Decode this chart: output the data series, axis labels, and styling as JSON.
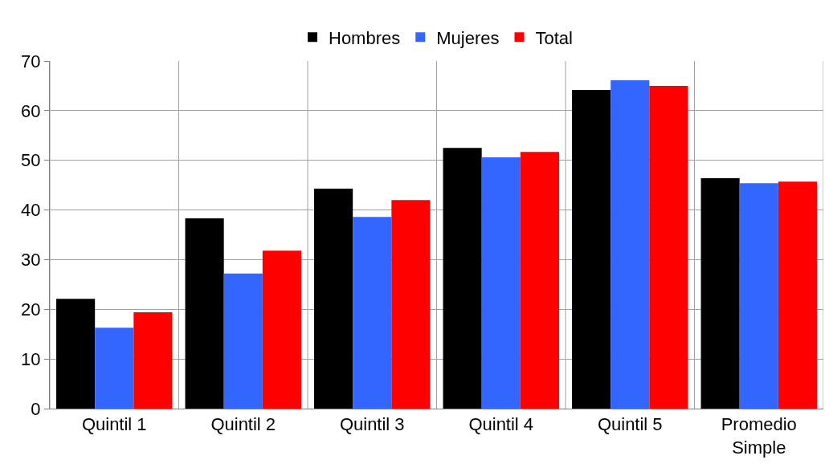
{
  "chart_data": {
    "type": "bar",
    "categories": [
      "Quintil 1",
      "Quintil 2",
      "Quintil 3",
      "Quintil 4",
      "Quintil 5",
      "Promedio Simple"
    ],
    "series": [
      {
        "name": "Hombres",
        "color": "#000000",
        "values": [
          22.1,
          38.3,
          44.3,
          52.5,
          64.2,
          46.4
        ]
      },
      {
        "name": "Mujeres",
        "color": "#3366ff",
        "values": [
          16.3,
          27.2,
          38.6,
          50.6,
          66.1,
          45.4
        ]
      },
      {
        "name": "Total",
        "color": "#ff0000",
        "values": [
          19.4,
          31.8,
          42.0,
          51.7,
          65.0,
          45.7
        ]
      }
    ],
    "ylim": [
      0,
      70
    ],
    "yticks": [
      0,
      10,
      20,
      30,
      40,
      50,
      60,
      70
    ],
    "grid": true,
    "legend": "top"
  }
}
